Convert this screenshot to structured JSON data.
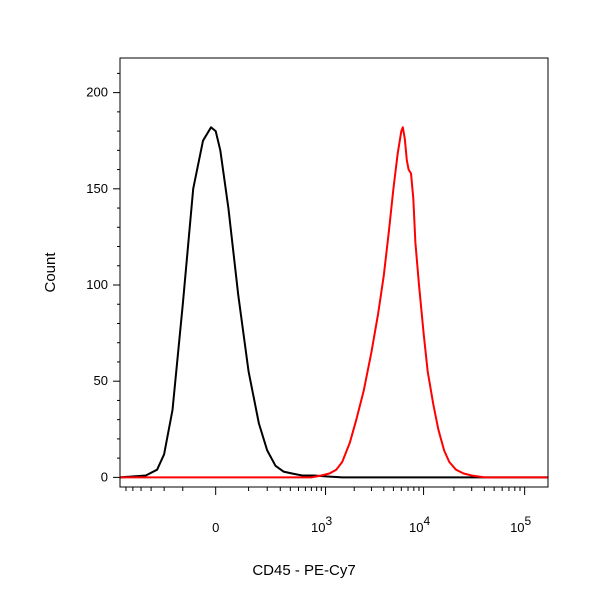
{
  "chart_data": {
    "type": "line",
    "title": "",
    "xlabel": "CD45 - PE-Cy7",
    "ylabel": "Count",
    "x_scale": "biexponential",
    "xlim": [
      -700,
      170000
    ],
    "ylim": [
      -5,
      218
    ],
    "grid": false,
    "legend": "none",
    "y_ticks": [
      {
        "value": 0,
        "label": "0"
      },
      {
        "value": 50,
        "label": "50"
      },
      {
        "value": 100,
        "label": "100"
      },
      {
        "value": 150,
        "label": "150"
      },
      {
        "value": 200,
        "label": "200"
      }
    ],
    "x_ticks": [
      {
        "value": 0,
        "base": "0",
        "exp": ""
      },
      {
        "value": 1000,
        "base": "10",
        "exp": "3"
      },
      {
        "value": 10000,
        "base": "10",
        "exp": "4"
      },
      {
        "value": 100000,
        "base": "10",
        "exp": "5"
      }
    ],
    "series": [
      {
        "color": "#000000",
        "x": [
          -700,
          -350,
          -250,
          -200,
          -150,
          -100,
          -60,
          -30,
          -10,
          0,
          10,
          30,
          60,
          100,
          150,
          200,
          260,
          330,
          420,
          550,
          750,
          1000,
          1500,
          170000
        ],
        "y": [
          0,
          1,
          4,
          12,
          35,
          90,
          150,
          175,
          182,
          180,
          170,
          140,
          95,
          55,
          28,
          14,
          6,
          3,
          2,
          1,
          1,
          0.5,
          0,
          0
        ]
      },
      {
        "color": "#ff0000",
        "x": [
          -700,
          700,
          900,
          1100,
          1300,
          1500,
          1800,
          2100,
          2500,
          3000,
          3500,
          4000,
          4500,
          5000,
          5500,
          6000,
          6200,
          6500,
          6800,
          7100,
          7500,
          7900,
          8300,
          9000,
          10000,
          11000,
          12500,
          14000,
          16000,
          18000,
          21000,
          25000,
          30000,
          40000,
          170000
        ],
        "y": [
          0,
          0,
          1,
          2,
          4,
          8,
          18,
          30,
          45,
          65,
          85,
          105,
          128,
          150,
          168,
          180,
          182,
          176,
          165,
          160,
          158,
          145,
          122,
          100,
          75,
          55,
          38,
          25,
          14,
          8,
          4,
          2,
          1,
          0,
          0
        ]
      }
    ]
  }
}
